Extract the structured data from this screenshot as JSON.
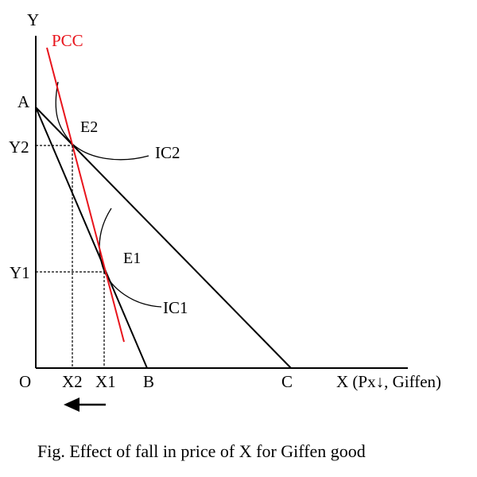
{
  "colors": {
    "axis": "#000000",
    "budget_line": "#000000",
    "pcc": "#e8141c",
    "indifference_curve": "#000000",
    "guide_line": "#000000"
  },
  "axes": {
    "y_label": "Y",
    "x_label": "X (Px↓, Giffen)",
    "origin_label": "O"
  },
  "points": {
    "a": "A",
    "b": "B",
    "c": "C",
    "e1": "E1",
    "e2": "E2"
  },
  "ticks": {
    "y1": "Y1",
    "y2": "Y2",
    "x1": "X1",
    "x2": "X2"
  },
  "curves": {
    "pcc": "PCC",
    "ic1": "IC1",
    "ic2": "IC2"
  },
  "shift_arrow_icon": "left-arrow-icon",
  "caption": "Fig. Effect of fall in price of X for Giffen good"
}
